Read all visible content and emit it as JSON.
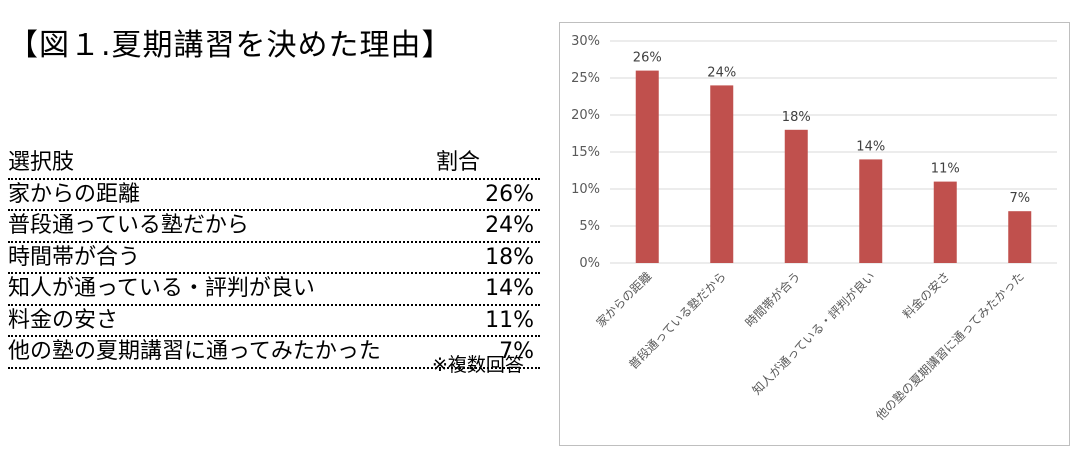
{
  "title": "【図１.夏期講習を決めた理由】",
  "table": {
    "header_label": "選択肢",
    "header_value": "割合",
    "rows": [
      {
        "label": "家からの距離",
        "value": "26%"
      },
      {
        "label": "普段通っている塾だから",
        "value": "24%"
      },
      {
        "label": "時間帯が合う",
        "value": "18%"
      },
      {
        "label": "知人が通っている・評判が良い",
        "value": "14%"
      },
      {
        "label": "料金の安さ",
        "value": "11%"
      },
      {
        "label": "他の塾の夏期講習に通ってみたかった",
        "value": "7%"
      }
    ],
    "note": "※複数回答"
  },
  "chart_data": {
    "type": "bar",
    "categories": [
      "家からの距離",
      "普段通っている塾だから",
      "時間帯が合う",
      "知人が通っている・評判が良い",
      "料金の安さ",
      "他の塾の夏期講習に通ってみたかった"
    ],
    "values": [
      26,
      24,
      18,
      14,
      11,
      7
    ],
    "data_labels": [
      "26%",
      "24%",
      "18%",
      "14%",
      "11%",
      "7%"
    ],
    "y_ticks": [
      "0%",
      "5%",
      "10%",
      "15%",
      "20%",
      "25%",
      "30%"
    ],
    "ylim": [
      0,
      30
    ],
    "grid": true,
    "legend": "none",
    "bar_color": "#C0504D",
    "grid_color": "#d9d9d9"
  }
}
